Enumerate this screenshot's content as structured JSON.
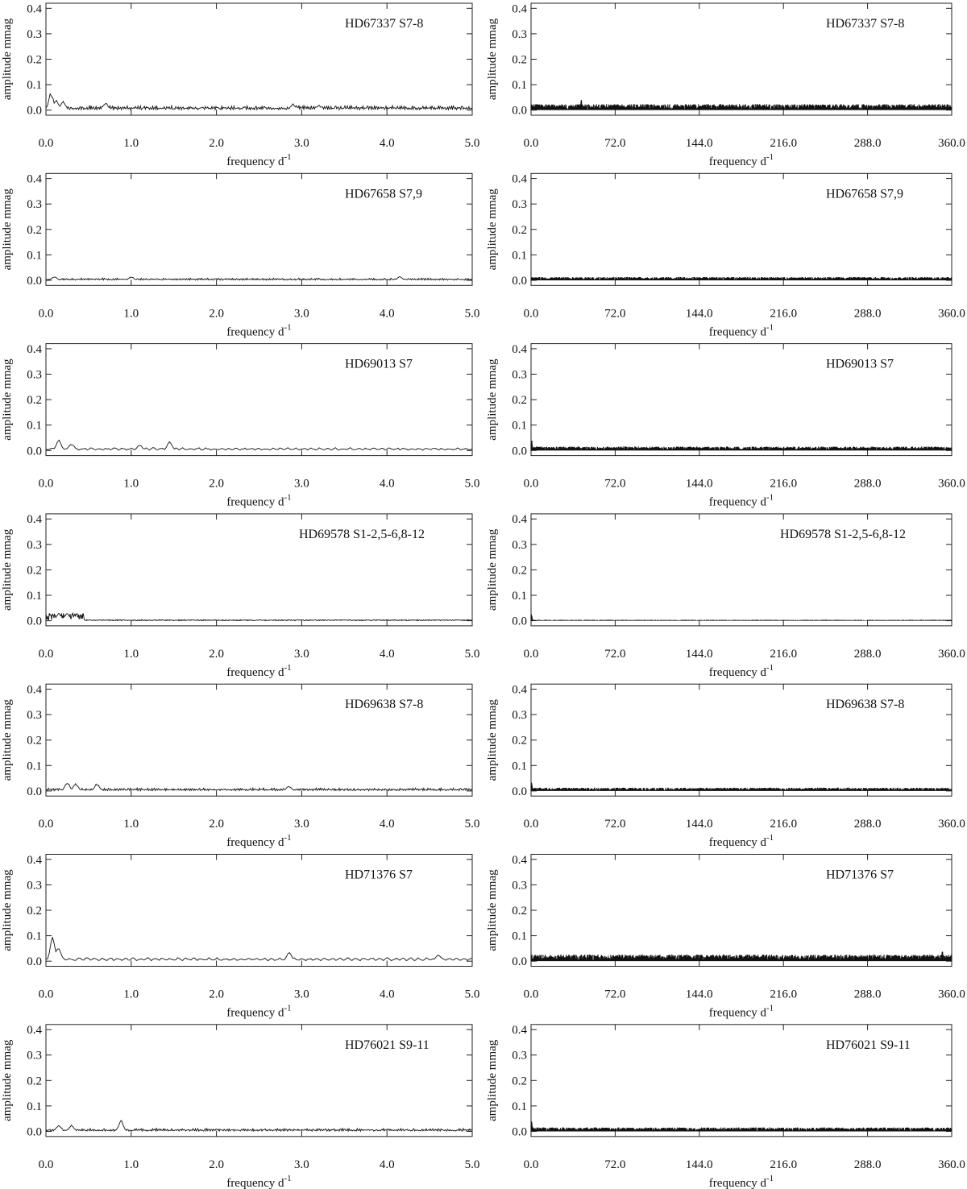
{
  "figure": {
    "xlabel_text": "frequency d",
    "xlabel_sup": "-1",
    "ylabel": "amplitude mmag"
  },
  "chart_data": [
    {
      "type": "line",
      "star": "HD67337",
      "sectors": "S7-8",
      "label": "HD67337 S7-8",
      "column": "left",
      "xlabel": "frequency d-1",
      "ylabel": "amplitude mmag",
      "xlim": [
        0,
        5
      ],
      "ylim": [
        -0.02,
        0.42
      ],
      "xticks": [
        "0.0",
        "1.0",
        "2.0",
        "3.0",
        "4.0",
        "5.0"
      ],
      "yticks": [
        "0.0",
        "0.1",
        "0.2",
        "0.3",
        "0.4"
      ],
      "noise_level": 0.012,
      "peaks": [
        [
          0.06,
          0.07
        ],
        [
          0.12,
          0.045
        ],
        [
          0.2,
          0.035
        ],
        [
          0.7,
          0.03
        ],
        [
          2.9,
          0.025
        ],
        [
          3.2,
          0.02
        ]
      ],
      "style": "line"
    },
    {
      "type": "line",
      "star": "HD67337",
      "sectors": "S7-8",
      "label": "HD67337 S7-8",
      "column": "right",
      "xlabel": "frequency d-1",
      "ylabel": "amplitude mmag",
      "xlim": [
        0,
        360
      ],
      "ylim": [
        -0.02,
        0.42
      ],
      "xticks": [
        "0.0",
        "72.0",
        "144.0",
        "216.0",
        "288.0",
        "360.0"
      ],
      "yticks": [
        "0.0",
        "0.1",
        "0.2",
        "0.3",
        "0.4"
      ],
      "noise_level": 0.018,
      "peaks": [
        [
          43,
          0.045
        ]
      ],
      "style": "dense"
    },
    {
      "type": "line",
      "star": "HD67658",
      "sectors": "S7,9",
      "label": "HD67658 S7,9",
      "column": "left",
      "xlabel": "frequency d-1",
      "ylabel": "amplitude mmag",
      "xlim": [
        0,
        5
      ],
      "ylim": [
        -0.02,
        0.42
      ],
      "xticks": [
        "0.0",
        "1.0",
        "2.0",
        "3.0",
        "4.0",
        "5.0"
      ],
      "yticks": [
        "0.0",
        "0.1",
        "0.2",
        "0.3",
        "0.4"
      ],
      "noise_level": 0.006,
      "peaks": [
        [
          0.1,
          0.015
        ],
        [
          1.0,
          0.015
        ],
        [
          4.15,
          0.015
        ]
      ],
      "style": "line"
    },
    {
      "type": "line",
      "star": "HD67658",
      "sectors": "S7,9",
      "label": "HD67658 S7,9",
      "column": "right",
      "xlabel": "frequency d-1",
      "ylabel": "amplitude mmag",
      "xlim": [
        0,
        360
      ],
      "ylim": [
        -0.02,
        0.42
      ],
      "xticks": [
        "0.0",
        "72.0",
        "144.0",
        "216.0",
        "288.0",
        "360.0"
      ],
      "yticks": [
        "0.0",
        "0.1",
        "0.2",
        "0.3",
        "0.4"
      ],
      "noise_level": 0.01,
      "peaks": [],
      "style": "dense"
    },
    {
      "type": "line",
      "star": "HD69013",
      "sectors": "S7",
      "label": "HD69013 S7",
      "column": "left",
      "xlabel": "frequency d-1",
      "ylabel": "amplitude mmag",
      "xlim": [
        0,
        5
      ],
      "ylim": [
        -0.02,
        0.42
      ],
      "xticks": [
        "0.0",
        "1.0",
        "2.0",
        "3.0",
        "4.0",
        "5.0"
      ],
      "yticks": [
        "0.0",
        "0.1",
        "0.2",
        "0.3",
        "0.4"
      ],
      "noise_level": 0.01,
      "peaks": [
        [
          0.15,
          0.045
        ],
        [
          0.3,
          0.03
        ],
        [
          1.45,
          0.04
        ],
        [
          1.1,
          0.025
        ]
      ],
      "style": "smooth"
    },
    {
      "type": "line",
      "star": "HD69013",
      "sectors": "S7",
      "label": "HD69013 S7",
      "column": "right",
      "xlabel": "frequency d-1",
      "ylabel": "amplitude mmag",
      "xlim": [
        0,
        360
      ],
      "ylim": [
        -0.02,
        0.42
      ],
      "xticks": [
        "0.0",
        "72.0",
        "144.0",
        "216.0",
        "288.0",
        "360.0"
      ],
      "yticks": [
        "0.0",
        "0.1",
        "0.2",
        "0.3",
        "0.4"
      ],
      "noise_level": 0.012,
      "peaks": [
        [
          0.5,
          0.045
        ]
      ],
      "style": "dense"
    },
    {
      "type": "line",
      "star": "HD69578",
      "sectors": "S1-2,5-6,8-12",
      "label": "HD69578 S1-2,5-6,8-12",
      "column": "left",
      "xlabel": "frequency d-1",
      "ylabel": "amplitude mmag",
      "xlim": [
        0,
        5
      ],
      "ylim": [
        -0.02,
        0.42
      ],
      "xticks": [
        "0.0",
        "1.0",
        "2.0",
        "3.0",
        "4.0",
        "5.0"
      ],
      "yticks": [
        "0.0",
        "0.1",
        "0.2",
        "0.3",
        "0.4"
      ],
      "noise_level": 0.003,
      "peaks": [
        [
          0.15,
          0.03
        ],
        [
          0.25,
          0.03
        ],
        [
          0.35,
          0.025
        ]
      ],
      "style": "dense-low"
    },
    {
      "type": "line",
      "star": "HD69578",
      "sectors": "S1-2,5-6,8-12",
      "label": "HD69578 S1-2,5-6,8-12",
      "column": "right",
      "xlabel": "frequency d-1",
      "ylabel": "amplitude mmag",
      "xlim": [
        0,
        360
      ],
      "ylim": [
        -0.02,
        0.42
      ],
      "xticks": [
        "0.0",
        "72.0",
        "144.0",
        "216.0",
        "288.0",
        "360.0"
      ],
      "yticks": [
        "0.0",
        "0.1",
        "0.2",
        "0.3",
        "0.4"
      ],
      "noise_level": 0.003,
      "peaks": [
        [
          0.3,
          0.03
        ]
      ],
      "style": "dense"
    },
    {
      "type": "line",
      "star": "HD69638",
      "sectors": "S7-8",
      "label": "HD69638 S7-8",
      "column": "left",
      "xlabel": "frequency d-1",
      "ylabel": "amplitude mmag",
      "xlim": [
        0,
        5
      ],
      "ylim": [
        -0.02,
        0.42
      ],
      "xticks": [
        "0.0",
        "1.0",
        "2.0",
        "3.0",
        "4.0",
        "5.0"
      ],
      "yticks": [
        "0.0",
        "0.1",
        "0.2",
        "0.3",
        "0.4"
      ],
      "noise_level": 0.008,
      "peaks": [
        [
          0.25,
          0.035
        ],
        [
          0.35,
          0.03
        ],
        [
          0.6,
          0.03
        ],
        [
          2.85,
          0.02
        ]
      ],
      "style": "line"
    },
    {
      "type": "line",
      "star": "HD69638",
      "sectors": "S7-8",
      "label": "HD69638 S7-8",
      "column": "right",
      "xlabel": "frequency d-1",
      "ylabel": "amplitude mmag",
      "xlim": [
        0,
        360
      ],
      "ylim": [
        -0.02,
        0.42
      ],
      "xticks": [
        "0.0",
        "72.0",
        "144.0",
        "216.0",
        "288.0",
        "360.0"
      ],
      "yticks": [
        "0.0",
        "0.1",
        "0.2",
        "0.3",
        "0.4"
      ],
      "noise_level": 0.01,
      "peaks": [
        [
          0.5,
          0.035
        ]
      ],
      "style": "dense"
    },
    {
      "type": "line",
      "star": "HD71376",
      "sectors": "S7",
      "label": "HD71376 S7",
      "column": "left",
      "xlabel": "frequency d-1",
      "ylabel": "amplitude mmag",
      "xlim": [
        0,
        5
      ],
      "ylim": [
        -0.02,
        0.42
      ],
      "xticks": [
        "0.0",
        "1.0",
        "2.0",
        "3.0",
        "4.0",
        "5.0"
      ],
      "yticks": [
        "0.0",
        "0.1",
        "0.2",
        "0.3",
        "0.4"
      ],
      "noise_level": 0.012,
      "peaks": [
        [
          0.08,
          0.1
        ],
        [
          0.15,
          0.06
        ],
        [
          2.85,
          0.04
        ],
        [
          4.6,
          0.03
        ]
      ],
      "style": "smooth"
    },
    {
      "type": "line",
      "star": "HD71376",
      "sectors": "S7",
      "label": "HD71376 S7",
      "column": "right",
      "xlabel": "frequency d-1",
      "ylabel": "amplitude mmag",
      "xlim": [
        0,
        360
      ],
      "ylim": [
        -0.02,
        0.42
      ],
      "xticks": [
        "0.0",
        "72.0",
        "144.0",
        "216.0",
        "288.0",
        "360.0"
      ],
      "yticks": [
        "0.0",
        "0.1",
        "0.2",
        "0.3",
        "0.4"
      ],
      "noise_level": 0.02,
      "peaks": [
        [
          352,
          0.045
        ]
      ],
      "style": "dense"
    },
    {
      "type": "line",
      "star": "HD76021",
      "sectors": "S9-11",
      "label": "HD76021 S9-11",
      "column": "left",
      "xlabel": "frequency d-1",
      "ylabel": "amplitude mmag",
      "xlim": [
        0,
        5
      ],
      "ylim": [
        -0.02,
        0.42
      ],
      "xticks": [
        "0.0",
        "1.0",
        "2.0",
        "3.0",
        "4.0",
        "5.0"
      ],
      "yticks": [
        "0.0",
        "0.1",
        "0.2",
        "0.3",
        "0.4"
      ],
      "noise_level": 0.008,
      "peaks": [
        [
          0.88,
          0.045
        ],
        [
          0.15,
          0.025
        ],
        [
          0.3,
          0.025
        ]
      ],
      "style": "line"
    },
    {
      "type": "line",
      "star": "HD76021",
      "sectors": "S9-11",
      "label": "HD76021 S9-11",
      "column": "right",
      "xlabel": "frequency d-1",
      "ylabel": "amplitude mmag",
      "xlim": [
        0,
        360
      ],
      "ylim": [
        -0.02,
        0.42
      ],
      "xticks": [
        "0.0",
        "72.0",
        "144.0",
        "216.0",
        "288.0",
        "360.0"
      ],
      "yticks": [
        "0.0",
        "0.1",
        "0.2",
        "0.3",
        "0.4"
      ],
      "noise_level": 0.012,
      "peaks": [
        [
          0.5,
          0.04
        ]
      ],
      "style": "dense"
    }
  ]
}
